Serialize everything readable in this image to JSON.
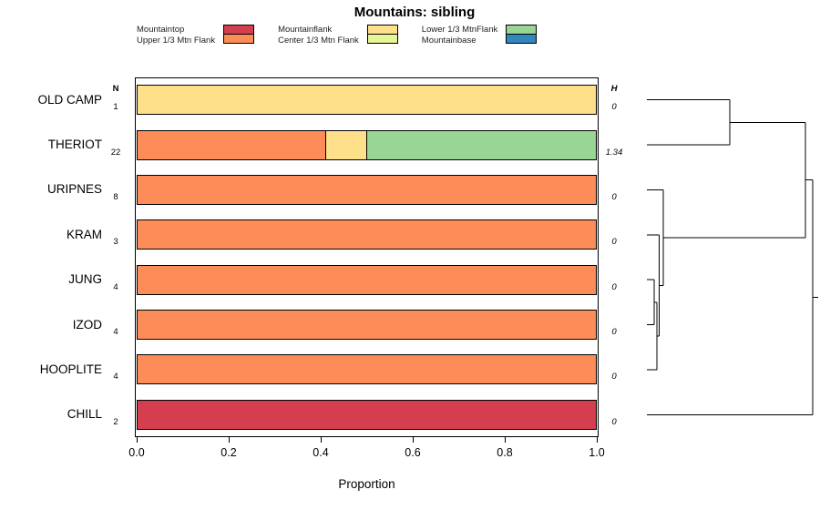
{
  "chart_data": {
    "type": "bar",
    "subtype": "horizontal-stacked-with-dendrogram",
    "title": "Mountains: sibling",
    "xlabel": "Proportion",
    "xlim": [
      0,
      1
    ],
    "x_ticks": [
      "0.0",
      "0.2",
      "0.4",
      "0.6",
      "0.8",
      "1.0"
    ],
    "n_header": "N",
    "h_header": "H",
    "legend": {
      "position": "top",
      "items": [
        {
          "label": "Mountaintop",
          "color": "#D53E4F"
        },
        {
          "label": "Upper 1/3 Mtn Flank",
          "color": "#FC8D59"
        },
        {
          "label": "Mountainflank",
          "color": "#FEE08B"
        },
        {
          "label": "Center 1/3 Mtn Flank",
          "color": "#E6F598"
        },
        {
          "label": "Lower 1/3 MtnFlank",
          "color": "#99D594"
        },
        {
          "label": "Mountainbase",
          "color": "#3288BD"
        }
      ]
    },
    "rows": [
      {
        "label": "OLD CAMP",
        "n": "1",
        "h": "0",
        "segments": [
          {
            "category": "Mountainflank",
            "value": 1.0
          }
        ]
      },
      {
        "label": "THERIOT",
        "n": "22",
        "h": "1.34",
        "segments": [
          {
            "category": "Upper 1/3 Mtn Flank",
            "value": 0.41
          },
          {
            "category": "Mountainflank",
            "value": 0.09
          },
          {
            "category": "Lower 1/3 MtnFlank",
            "value": 0.5
          }
        ]
      },
      {
        "label": "URIPNES",
        "n": "8",
        "h": "0",
        "segments": [
          {
            "category": "Upper 1/3 Mtn Flank",
            "value": 1.0
          }
        ]
      },
      {
        "label": "KRAM",
        "n": "3",
        "h": "0",
        "segments": [
          {
            "category": "Upper 1/3 Mtn Flank",
            "value": 1.0
          }
        ]
      },
      {
        "label": "JUNG",
        "n": "4",
        "h": "0",
        "segments": [
          {
            "category": "Upper 1/3 Mtn Flank",
            "value": 1.0
          }
        ]
      },
      {
        "label": "IZOD",
        "n": "4",
        "h": "0",
        "segments": [
          {
            "category": "Upper 1/3 Mtn Flank",
            "value": 1.0
          }
        ]
      },
      {
        "label": "HOOPLITE",
        "n": "4",
        "h": "0",
        "segments": [
          {
            "category": "Upper 1/3 Mtn Flank",
            "value": 1.0
          }
        ]
      },
      {
        "label": "CHILL",
        "n": "2",
        "h": "0",
        "segments": [
          {
            "category": "Mountaintop",
            "value": 1.0
          }
        ]
      }
    ],
    "dendrogram": {
      "leaves": [
        "OLD CAMP",
        "THERIOT",
        "URIPNES",
        "KRAM",
        "JUNG",
        "IZOD",
        "HOOPLITE",
        "CHILL"
      ],
      "merges": [
        {
          "a": "JUNG",
          "b": "IZOD",
          "h": 0.045
        },
        {
          "a": "#0",
          "b": "HOOPLITE",
          "h": 0.06
        },
        {
          "a": "KRAM",
          "b": "#1",
          "h": 0.075
        },
        {
          "a": "URIPNES",
          "b": "#2",
          "h": 0.1
        },
        {
          "a": "OLD CAMP",
          "b": "THERIOT",
          "h": 0.5
        },
        {
          "a": "#4",
          "b": "#3",
          "h": 0.955
        },
        {
          "a": "#5",
          "b": "CHILL",
          "h": 1.0
        }
      ]
    }
  }
}
